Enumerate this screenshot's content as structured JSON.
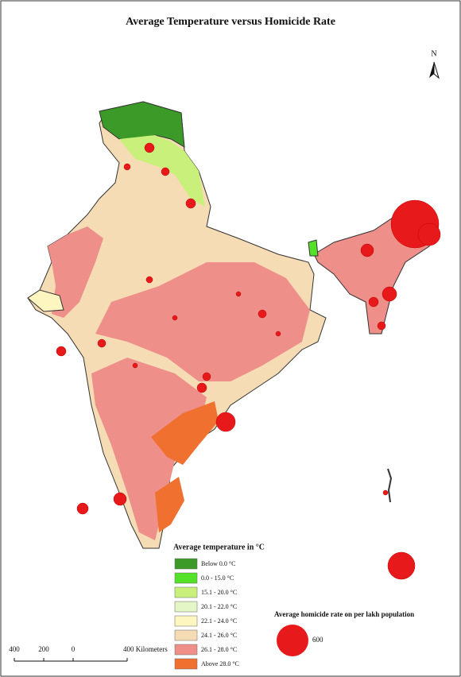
{
  "title": "Average Temperature versus Homicide Rate",
  "north": "N",
  "temperature_legend": {
    "title": "Average temperature in °C",
    "items": [
      {
        "label": "Below 0.0 °C",
        "color": "#3c9a28"
      },
      {
        "label": "0.0 - 15.0 °C",
        "color": "#55e02a"
      },
      {
        "label": "15.1 - 20.0 °C",
        "color": "#c8f07a"
      },
      {
        "label": "20.1 - 22.0 °C",
        "color": "#e4f5c6"
      },
      {
        "label": "22.1 - 24.0 °C",
        "color": "#fdf6c0"
      },
      {
        "label": "24.1 - 26.0 °C",
        "color": "#f5dcb4"
      },
      {
        "label": "26.1 - 28.0 °C",
        "color": "#ee8f8a"
      },
      {
        "label": "Above 28.0 °C",
        "color": "#f07030"
      }
    ]
  },
  "homicide_legend": {
    "title": "Average homicide rate on per lakh population",
    "size_label": "600"
  },
  "scale_bar": {
    "labels": [
      "400",
      "200",
      "0",
      "400 Kilometers"
    ]
  }
}
